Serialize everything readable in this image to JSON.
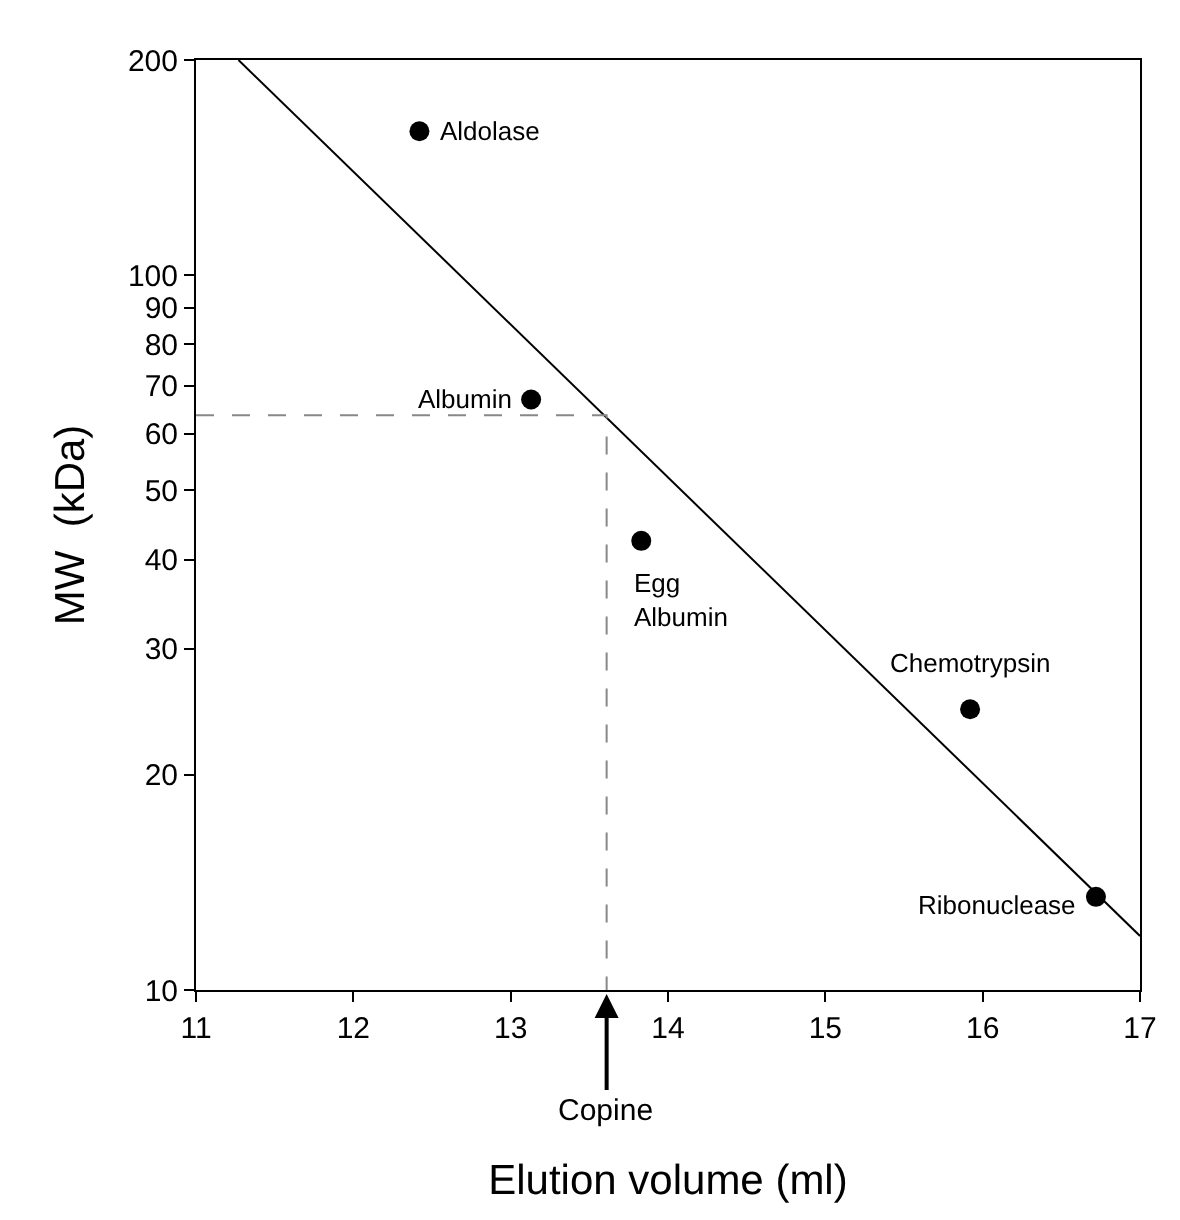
{
  "chart_data": {
    "type": "scatter",
    "xlabel": "Elution volume (ml)",
    "ylabel": "MW  (kDa)",
    "log": "y",
    "grid": false,
    "legend": false,
    "marker": "circle",
    "xlim": [
      11,
      17
    ],
    "xticks": [
      11,
      12,
      13,
      14,
      15,
      16,
      17
    ],
    "ylim": [
      10,
      200
    ],
    "yticks": [
      10,
      20,
      30,
      40,
      50,
      60,
      70,
      80,
      90,
      100,
      200
    ],
    "series": [
      {
        "color": "#000000",
        "x": [
          12.42,
          13.13,
          13.83,
          15.92,
          16.72
        ],
        "values": [
          159,
          67,
          42.5,
          24.7,
          13.5
        ]
      },
      {
        "type": "line",
        "color": "#000000",
        "line_style": "solid",
        "marker": "none",
        "x": [
          11.27,
          17
        ],
        "values": [
          200,
          11.9
        ]
      },
      {
        "type": "line",
        "color": "#888888",
        "line_style": "dashed",
        "marker": "none",
        "x": [
          11,
          13.61,
          13.61
        ],
        "values": [
          63.7,
          63.7,
          10
        ]
      }
    ],
    "annotations": [
      {
        "text": "Aldolase",
        "x": 12.42,
        "y": 159
      },
      {
        "text": "Albumin",
        "x": 13.13,
        "y": 67
      },
      {
        "text": "Egg\nAlbumin",
        "x": 13.83,
        "y": 42.5
      },
      {
        "text": "Chemotrypsin",
        "x": 15.92,
        "y": 24.7
      },
      {
        "text": "Ribonuclease",
        "x": 16.72,
        "y": 13.5
      },
      {
        "text": "Copine",
        "x": 13.61,
        "y": 10
      }
    ]
  }
}
